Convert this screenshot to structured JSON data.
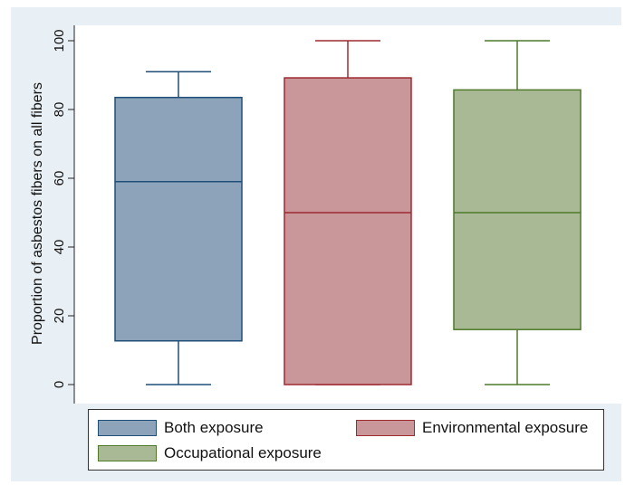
{
  "chart_data": {
    "type": "box",
    "ylabel": "Proportion of asbestos fibers on all fibers",
    "ylim": [
      0,
      100
    ],
    "yticks": [
      0,
      20,
      40,
      60,
      80,
      100
    ],
    "grid": false,
    "legend_position": "bottom",
    "series": [
      {
        "name": "Both exposure",
        "min": 0,
        "q1": 12.7,
        "median": 59,
        "q3": 83.5,
        "max": 91,
        "fill": "#8ca3b9",
        "stroke": "#1f4e79"
      },
      {
        "name": "Environmental exposure",
        "min": 0,
        "q1": 0,
        "median": 50,
        "q3": 89.2,
        "max": 100,
        "fill": "#c99799",
        "stroke": "#9e2a30"
      },
      {
        "name": "Occupational exposure",
        "min": 0,
        "q1": 16,
        "median": 50,
        "q3": 85.7,
        "max": 100,
        "fill": "#a9b995",
        "stroke": "#4f7a2a"
      }
    ]
  }
}
